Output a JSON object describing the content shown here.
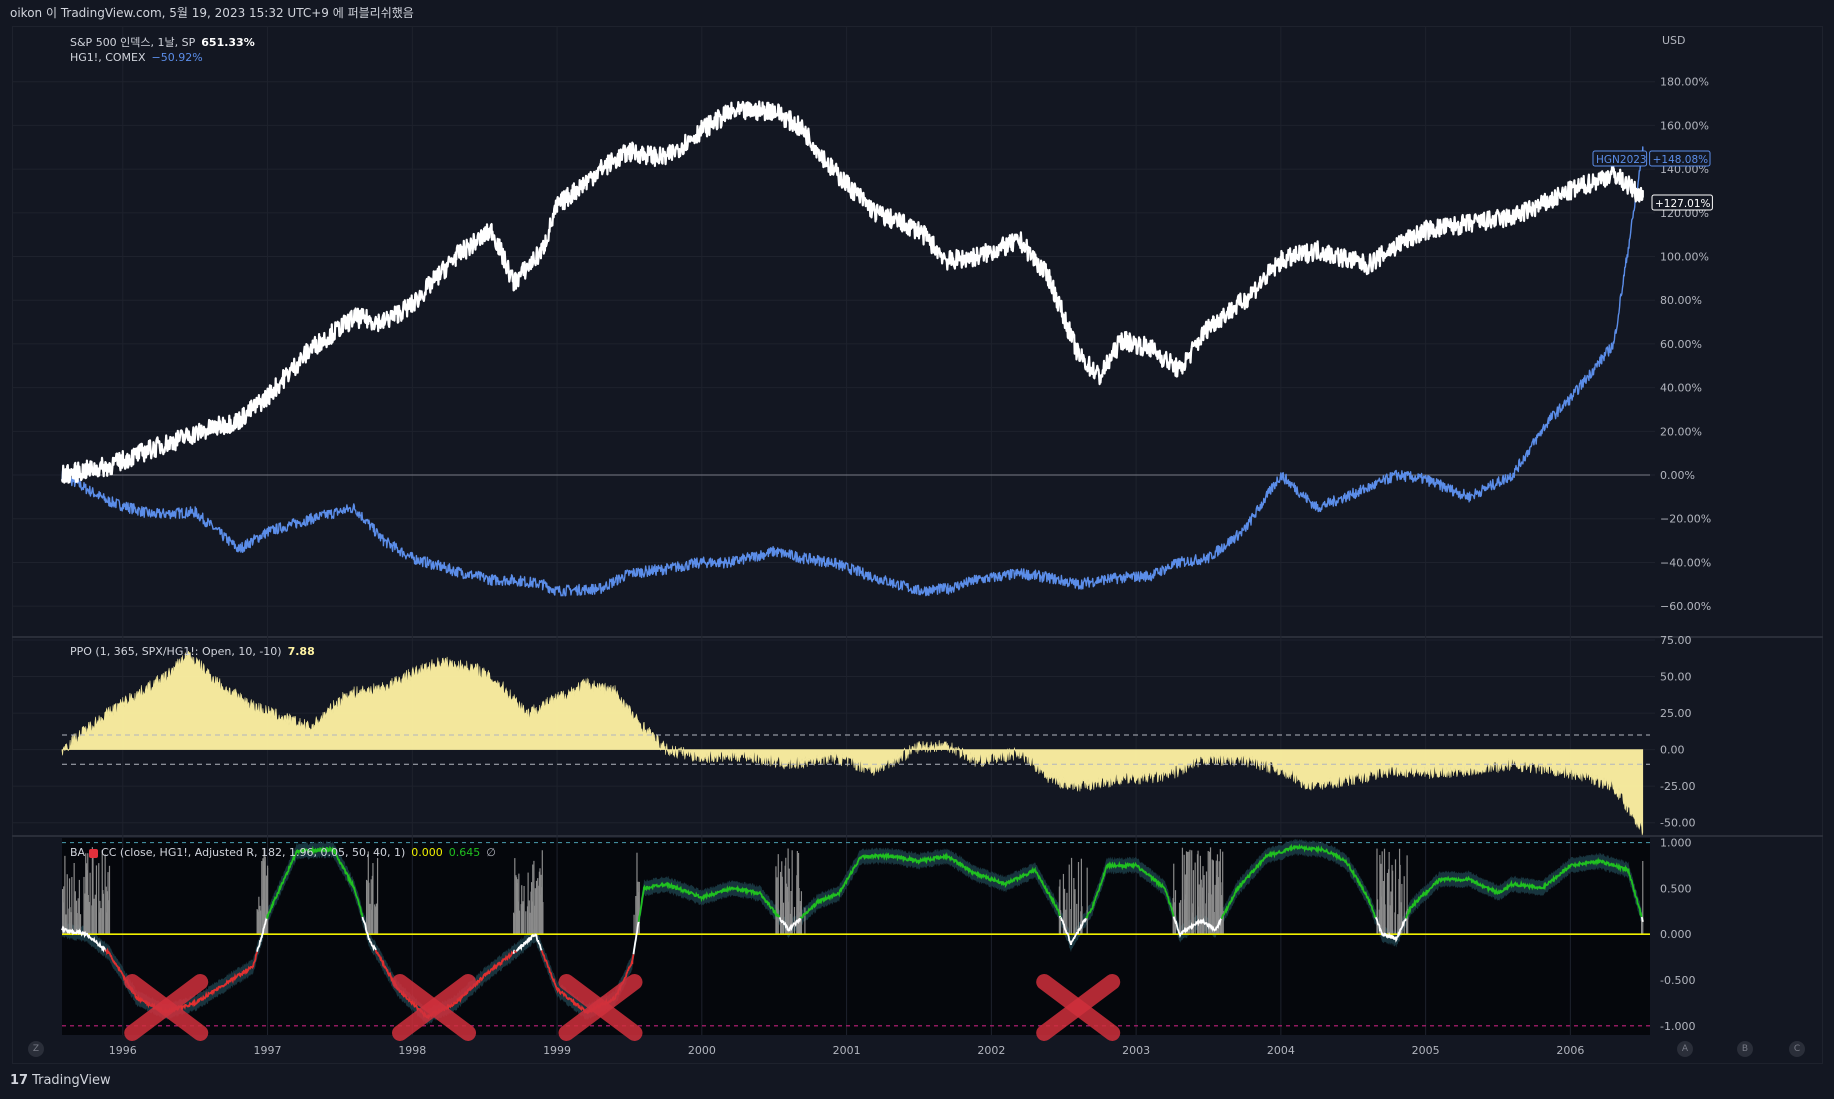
{
  "header": {
    "publish_text": "oikon 이 TradingView.com, 5월 19, 2023 15:32 UTC+9 에 퍼블리쉬했음"
  },
  "brand": {
    "logo": "17",
    "name": "TradingView"
  },
  "panes": {
    "main": {
      "legend1_name": "S&P 500 인덱스, 1날, SP",
      "legend1_value": "651.33%",
      "legend2_name": "HG1!, COMEX",
      "legend2_value": "−50.92%",
      "currency": "USD"
    },
    "ppo": {
      "legend_name": "PPO (1, 365, SPX/HG1!: Open, 10, -10)",
      "legend_value": "7.88"
    },
    "cc": {
      "legend_name": "BA",
      "legend_params": "CC (close, HG1!, Adjusted R, 182, 1.96, 0.05, 50, 40, 1)",
      "legend_value1": "0.000",
      "legend_value2": "0.645",
      "legend_value3": "∅"
    }
  },
  "corner_buttons": [
    "Z",
    "A",
    "B",
    "C"
  ],
  "colors": {
    "background": "#131722",
    "spx_line": "#ffffff",
    "copper_line": "#5b8de8",
    "ppo_fill": "#fff3a3",
    "cc_green": "#20c020",
    "cc_red": "#e03030",
    "cc_yellow": "#f0f000",
    "cross_marks": "#d0303c"
  },
  "chart_data": [
    {
      "type": "line",
      "title": "S&P 500 인덱스, 1날, SP",
      "ylabel": "USD",
      "x": [
        1995.58,
        1995.9,
        1996.2,
        1996.5,
        1996.8,
        1997.0,
        1997.3,
        1997.6,
        1997.8,
        1998.0,
        1998.3,
        1998.55,
        1998.7,
        1998.9,
        1999.0,
        1999.3,
        1999.5,
        1999.75,
        2000.0,
        2000.2,
        2000.5,
        2000.7,
        2000.9,
        2001.2,
        2001.5,
        2001.7,
        2001.9,
        2002.2,
        2002.4,
        2002.6,
        2002.75,
        2002.9,
        2003.1,
        2003.3,
        2003.5,
        2003.75,
        2004.0,
        2004.25,
        2004.6,
        2004.8,
        2005.0,
        2005.3,
        2005.6,
        2005.85,
        2006.0,
        2006.3,
        2006.5
      ],
      "series": [
        {
          "name": "S&P 500 인덱스, 1날, SP",
          "values": [
            0,
            4,
            12,
            19,
            25,
            36,
            58,
            72,
            70,
            78,
            100,
            112,
            88,
            103,
            123,
            140,
            148,
            145,
            158,
            166,
            167,
            158,
            140,
            120,
            112,
            98,
            100,
            107,
            90,
            55,
            45,
            62,
            58,
            48,
            68,
            80,
            98,
            103,
            96,
            105,
            112,
            115,
            118,
            125,
            130,
            138,
            127
          ]
        },
        {
          "name": "HG1!, COMEX",
          "values": [
            0,
            -12,
            -18,
            -17,
            -34,
            -26,
            -20,
            -15,
            -30,
            -38,
            -44,
            -48,
            -48,
            -50,
            -53,
            -52,
            -45,
            -43,
            -40,
            -40,
            -35,
            -38,
            -40,
            -47,
            -53,
            -52,
            -48,
            -45,
            -47,
            -50,
            -48,
            -47,
            -46,
            -40,
            -38,
            -25,
            0,
            -15,
            -6,
            0,
            -2,
            -10,
            0,
            25,
            35,
            60,
            148
          ]
        }
      ],
      "ylim": [
        -70,
        200
      ],
      "ytick_labels": [
        "180.00%",
        "160.00%",
        "140.00%",
        "120.00%",
        "100.00%",
        "80.00%",
        "60.00%",
        "40.00%",
        "20.00%",
        "0.00%",
        "−20.00%",
        "−40.00%",
        "−60.00%"
      ],
      "price_labels": [
        "HGN2023",
        "+148.08%",
        "+127.01%"
      ]
    },
    {
      "type": "area",
      "title": "PPO (1, 365, SPX/HG1!: Open, 10, -10)",
      "x": [
        1995.58,
        1995.8,
        1996.0,
        1996.3,
        1996.45,
        1996.7,
        1996.9,
        1997.1,
        1997.3,
        1997.55,
        1997.8,
        1998.0,
        1998.2,
        1998.45,
        1998.6,
        1998.8,
        1999.0,
        1999.2,
        1999.4,
        1999.55,
        1999.75,
        2000.0,
        2000.3,
        2000.6,
        2000.9,
        2001.2,
        2001.5,
        2001.7,
        2001.9,
        2002.2,
        2002.4,
        2002.6,
        2002.9,
        2003.2,
        2003.5,
        2003.8,
        2004.0,
        2004.2,
        2004.5,
        2004.8,
        2005.0,
        2005.3,
        2005.6,
        2005.9,
        2006.1,
        2006.3,
        2006.5
      ],
      "values": [
        0,
        18,
        32,
        50,
        65,
        42,
        30,
        22,
        15,
        38,
        42,
        52,
        60,
        55,
        45,
        25,
        35,
        45,
        40,
        20,
        0,
        -5,
        -4,
        -10,
        -5,
        -14,
        2,
        3,
        -8,
        -2,
        -20,
        -25,
        -20,
        -18,
        -6,
        -8,
        -14,
        -25,
        -20,
        -14,
        -16,
        -14,
        -10,
        -14,
        -18,
        -25,
        -55
      ],
      "ylim": [
        -55,
        75
      ],
      "ytick_labels": [
        "75.00",
        "50.00",
        "25.00",
        "0.00",
        "-25.00",
        "-50.00"
      ],
      "bands": [
        10,
        -10
      ]
    },
    {
      "type": "line",
      "title": "BA CC (close, HG1!, Adjusted R, 182, 1.96, 0.05, 50, 40, 1)",
      "x": [
        1995.58,
        1995.75,
        1995.9,
        1996.1,
        1996.3,
        1996.5,
        1996.7,
        1996.9,
        1997.0,
        1997.2,
        1997.45,
        1997.6,
        1997.7,
        1997.9,
        1998.1,
        1998.3,
        1998.5,
        1998.7,
        1998.85,
        1999.0,
        1999.2,
        1999.4,
        1999.52,
        1999.6,
        1999.75,
        2000.0,
        2000.2,
        2000.4,
        2000.6,
        2000.8,
        2000.95,
        2001.1,
        2001.3,
        2001.5,
        2001.7,
        2001.9,
        2002.1,
        2002.3,
        2002.45,
        2002.55,
        2002.7,
        2002.8,
        2003.0,
        2003.2,
        2003.3,
        2003.45,
        2003.55,
        2003.7,
        2003.9,
        2004.1,
        2004.3,
        2004.45,
        2004.6,
        2004.7,
        2004.8,
        2004.9,
        2005.1,
        2005.3,
        2005.5,
        2005.6,
        2005.8,
        2006.0,
        2006.2,
        2006.4,
        2006.5
      ],
      "values": [
        0.05,
        0.0,
        -0.2,
        -0.7,
        -0.85,
        -0.75,
        -0.55,
        -0.35,
        0.2,
        0.9,
        0.93,
        0.5,
        -0.05,
        -0.6,
        -0.9,
        -0.75,
        -0.45,
        -0.2,
        0.0,
        -0.6,
        -0.85,
        -0.7,
        -0.3,
        0.5,
        0.55,
        0.4,
        0.5,
        0.45,
        0.05,
        0.35,
        0.45,
        0.85,
        0.85,
        0.8,
        0.85,
        0.65,
        0.55,
        0.7,
        0.3,
        -0.1,
        0.3,
        0.75,
        0.75,
        0.5,
        0.0,
        0.15,
        0.05,
        0.5,
        0.85,
        0.95,
        0.92,
        0.8,
        0.4,
        0.0,
        -0.05,
        0.3,
        0.6,
        0.6,
        0.45,
        0.55,
        0.5,
        0.75,
        0.8,
        0.7,
        0.15
      ],
      "ylim": [
        -1.1,
        1.05
      ],
      "ytick_labels": [
        "1.000",
        "0.500",
        "0.000",
        "-0.500",
        "-1.000"
      ]
    }
  ],
  "x_axis": {
    "tick_labels": [
      "1996",
      "1997",
      "1998",
      "1999",
      "2000",
      "2001",
      "2002",
      "2003",
      "2004",
      "2005",
      "2006"
    ],
    "tick_values": [
      1996,
      1997,
      1998,
      1999,
      2000,
      2001,
      2002,
      2003,
      2004,
      2005,
      2006
    ],
    "range": [
      1995.58,
      2006.55
    ]
  },
  "annotations": {
    "crosses_at_years": [
      1996.3,
      1998.15,
      1999.3,
      2002.6
    ]
  }
}
